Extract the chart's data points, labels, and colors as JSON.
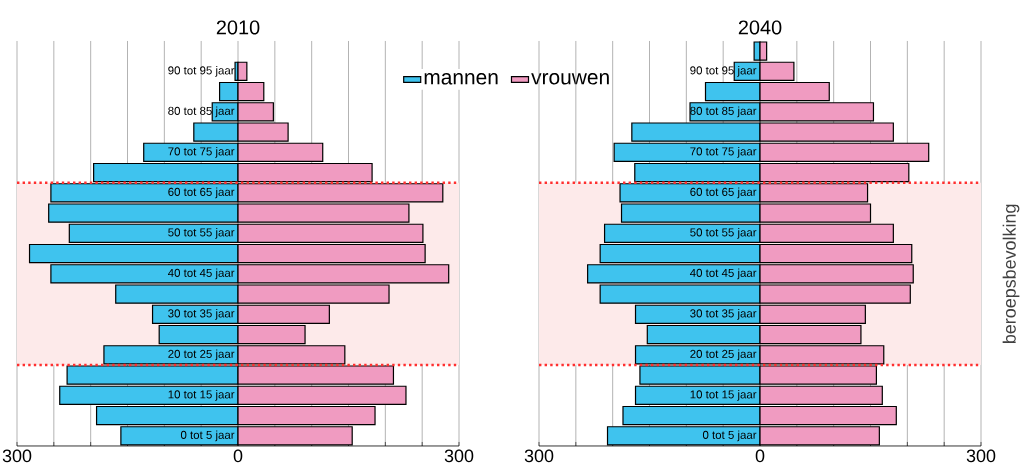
{
  "chart_data": [
    {
      "type": "bar",
      "orientation": "horizontal",
      "title": "2010",
      "categories": [
        null,
        "90 tot 95 jaar",
        null,
        "80 tot 85 jaar",
        null,
        "70 tot 75 jaar",
        null,
        "60 tot 65 jaar",
        null,
        "50 tot 55 jaar",
        null,
        "40 tot 45 jaar",
        null,
        "30 tot 35 jaar",
        null,
        "20 tot 25 jaar",
        null,
        "10 tot 15 jaar",
        null,
        "0 tot 5 jaar"
      ],
      "series": [
        {
          "name": "mannen",
          "color": "#3fc3ee",
          "values": [
            null,
            -4,
            -25,
            -35,
            -60,
            -128,
            -196,
            -254,
            -257,
            -229,
            -283,
            -254,
            -166,
            -116,
            -107,
            -182,
            -232,
            -242,
            -192,
            -159
          ]
        },
        {
          "name": "vrouwen",
          "color": "#f09bc1",
          "values": [
            null,
            12,
            35,
            48,
            68,
            115,
            182,
            278,
            232,
            251,
            254,
            286,
            205,
            124,
            91,
            145,
            211,
            228,
            186,
            155
          ]
        }
      ],
      "xlim": [
        -300,
        300
      ],
      "xticks": [
        {
          "value": -300,
          "label": "300"
        },
        {
          "value": -250,
          "label": null
        },
        {
          "value": -200,
          "label": null
        },
        {
          "value": -150,
          "label": null
        },
        {
          "value": -100,
          "label": null
        },
        {
          "value": -50,
          "label": null
        },
        0,
        {
          "value": 50,
          "label": null
        },
        {
          "value": 100,
          "label": null
        },
        {
          "value": 150,
          "label": null
        },
        {
          "value": 200,
          "label": null
        },
        {
          "value": 250,
          "label": null
        },
        300
      ],
      "grid": "x",
      "legend": "top right",
      "stacked": true,
      "bands": [
        {
          "axis": "y",
          "from": "20 tot 25 jaar",
          "to": "60 tot 65 jaar",
          "color": "#fdeaea"
        }
      ]
    },
    {
      "type": "bar",
      "orientation": "horizontal",
      "title": "2040",
      "categories": [
        null,
        "90 tot 95 jaar",
        null,
        "80 tot 85 jaar",
        null,
        "70 tot 75 jaar",
        null,
        "60 tot 65 jaar",
        null,
        "50 tot 55 jaar",
        null,
        "40 tot 45 jaar",
        null,
        "30 tot 35 jaar",
        null,
        "20 tot 25 jaar",
        null,
        "10 tot 15 jaar",
        null,
        "0 tot 5 jaar"
      ],
      "series": [
        {
          "color": "#3fc3ee",
          "values": [
            -8,
            -35,
            -74,
            -95,
            -174,
            -198,
            -170,
            -190,
            -188,
            -211,
            -217,
            -234,
            -217,
            -169,
            -153,
            -169,
            -163,
            -169,
            -186,
            -207
          ]
        },
        {
          "color": "#f09bc1",
          "values": [
            9,
            46,
            94,
            154,
            181,
            229,
            202,
            146,
            150,
            181,
            206,
            208,
            204,
            143,
            137,
            168,
            158,
            166,
            185,
            162
          ]
        }
      ],
      "xlim": [
        -300,
        300
      ],
      "xticks": [
        {
          "value": -300,
          "label": "300"
        },
        {
          "value": -250,
          "label": null
        },
        {
          "value": -200,
          "label": null
        },
        {
          "value": -150,
          "label": null
        },
        {
          "value": -100,
          "label": null
        },
        {
          "value": -50,
          "label": null
        },
        0,
        {
          "value": 50,
          "label": null
        },
        {
          "value": 100,
          "label": null
        },
        {
          "value": 150,
          "label": null
        },
        {
          "value": 200,
          "label": null
        },
        {
          "value": 250,
          "label": null
        },
        300
      ],
      "grid": "x",
      "stacked": true,
      "bands": [
        {
          "axis": "y",
          "from": "20 tot 25 jaar",
          "to": "60 tot 65 jaar",
          "color": "#fdeaea",
          "label": "beroepsbevolking"
        }
      ]
    }
  ]
}
